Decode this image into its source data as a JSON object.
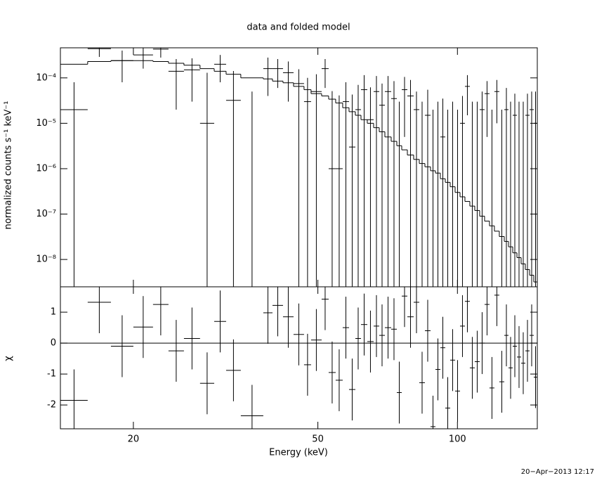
{
  "chart_data": {
    "type": "spectrum-residual",
    "title": "data and folded model",
    "xlabel": "Energy (keV)",
    "log_x": true,
    "xlim": [
      13.92,
      148.68
    ],
    "xticks": [
      20,
      50,
      100
    ],
    "bins": [
      13.92,
      15.94,
      17.89,
      20.0,
      22.05,
      23.81,
      25.71,
      27.85,
      29.88,
      31.7,
      34.1,
      38.13,
      39.91,
      42.05,
      44.31,
      46.68,
      48.34,
      50.94,
      52.75,
      54.62,
      56.56,
      58.37,
      60.23,
      61.94,
      63.91,
      65.95,
      67.82,
      69.74,
      71.96,
      74.0,
      75.83,
      77.98,
      80.46,
      82.74,
      85.08,
      87.49,
      89.65,
      91.87,
      94.14,
      96.46,
      98.85,
      101.29,
      103.79,
      106.35,
      108.98,
      111.67,
      114.43,
      117.25,
      120.15,
      123.12,
      126.19,
      128.86,
      131.59,
      134.37,
      137.21,
      140.11,
      143.08,
      146.1,
      148.68
    ],
    "top": {
      "ylabel": "normalized counts s⁻¹ keV⁻¹",
      "log_y": true,
      "ylim": [
        2.5e-09,
        0.00046
      ],
      "yticks": [
        {
          "value": 1e-08,
          "label": "10⁻⁸"
        },
        {
          "value": 1e-07,
          "label": "10⁻⁷"
        },
        {
          "value": 1e-06,
          "label": "10⁻⁶"
        },
        {
          "value": 1e-05,
          "label": "10⁻⁵"
        },
        {
          "value": 0.0001,
          "label": "10⁻⁴"
        }
      ],
      "data": {
        "color": "#000000",
        "values": [
          2e-05,
          0.00044,
          0.00024,
          0.00032,
          0.00043,
          0.00014,
          0.00015,
          1e-05,
          0.0002,
          3.2e-05,
          1e-09,
          0.00016,
          0.00016,
          0.00013,
          7.5e-05,
          3e-05,
          5e-05,
          0.00016,
          1e-06,
          1e-06,
          3e-05,
          3e-06,
          2e-05,
          5.5e-05,
          1.2e-05,
          5e-05,
          2.5e-05,
          5e-05,
          3.5e-05,
          1e-09,
          5.5e-05,
          4e-05,
          2e-05,
          1e-09,
          1.5e-05,
          1e-09,
          1e-09,
          5e-06,
          1e-09,
          1e-09,
          1e-09,
          1e-05,
          6.5e-05,
          1e-09,
          1e-09,
          2e-05,
          4.5e-05,
          1e-09,
          5e-05,
          1e-09,
          2e-05,
          1e-09,
          1.5e-05,
          1e-09,
          1e-09,
          1.5e-05,
          2e-05,
          1e-05
        ],
        "errors": [
          6e-05,
          0.00015,
          0.00016,
          0.00016,
          0.00015,
          0.00012,
          0.00012,
          0.00012,
          0.00012,
          0.00011,
          5e-05,
          0.00012,
          0.0001,
          0.0001,
          8e-05,
          7e-05,
          7e-05,
          0.0001,
          5e-05,
          4e-05,
          5e-05,
          4e-05,
          5e-05,
          6e-05,
          5e-05,
          6e-05,
          5e-05,
          6e-05,
          5e-05,
          3e-05,
          5e-05,
          5e-05,
          3e-05,
          3e-05,
          4e-05,
          2e-05,
          3e-05,
          3e-05,
          2e-05,
          3e-05,
          2e-05,
          3e-05,
          5e-05,
          3e-05,
          3e-05,
          3e-05,
          4e-05,
          2e-05,
          4e-05,
          2e-05,
          4e-05,
          3e-05,
          3e-05,
          3e-05,
          3e-05,
          3e-05,
          3e-05,
          4e-05
        ]
      },
      "model": {
        "color": "#000000",
        "values": [
          0.0002,
          0.00023,
          0.00024,
          0.00024,
          0.00023,
          0.00021,
          0.00019,
          0.00016,
          0.00014,
          0.00012,
          0.0001,
          9.5e-05,
          8.5e-05,
          7.8e-05,
          6.5e-05,
          5.5e-05,
          4.5e-05,
          4e-05,
          3.4e-05,
          2.8e-05,
          2.2e-05,
          1.8e-05,
          1.5e-05,
          1.2e-05,
          1e-05,
          8e-06,
          6.5e-06,
          5e-06,
          4e-06,
          3.2e-06,
          2.6e-06,
          2e-06,
          1.6e-06,
          1.3e-06,
          1.1e-06,
          9e-07,
          8e-07,
          6e-07,
          5e-07,
          4e-07,
          3e-07,
          2.4e-07,
          1.9e-07,
          1.5e-07,
          1.2e-07,
          9e-08,
          7e-08,
          5.5e-08,
          4.2e-08,
          3.2e-08,
          2.5e-08,
          1.9e-08,
          1.4e-08,
          1.1e-08,
          8e-09,
          6e-09,
          4.5e-09,
          3.2e-09
        ]
      }
    },
    "bottom": {
      "ylabel": "χ",
      "ylim": [
        -2.77,
        1.82
      ],
      "yticks": [
        -2,
        -1,
        0,
        1
      ],
      "reference": 0,
      "reference_color": "#00dd00",
      "data": {
        "color": "#000000",
        "values": [
          -1.85,
          1.32,
          -0.1,
          0.52,
          1.25,
          -0.25,
          0.15,
          -1.3,
          0.7,
          -0.88,
          -2.35,
          0.98,
          1.22,
          0.85,
          0.28,
          -0.7,
          0.1,
          1.42,
          -0.95,
          -1.2,
          0.5,
          -1.5,
          0.15,
          0.6,
          0.05,
          0.55,
          0.25,
          0.5,
          0.45,
          -1.6,
          1.52,
          0.85,
          1.32,
          -1.28,
          0.4,
          -2.7,
          -0.85,
          -0.15,
          -2.1,
          -0.55,
          -1.55,
          0.55,
          1.35,
          -0.8,
          -0.6,
          0,
          1.25,
          -1.45,
          1.55,
          -1.25,
          0.25,
          -0.8,
          -0.1,
          -0.45,
          -0.65,
          -0.25,
          0.25,
          -1.1
        ],
        "errors": [
          1,
          1,
          1,
          1,
          1,
          1,
          1,
          1,
          1,
          1,
          1,
          1,
          1,
          1,
          1,
          1,
          1,
          1,
          1,
          1,
          1,
          1,
          1,
          1,
          1,
          1,
          1,
          1,
          1,
          1,
          1,
          1,
          1,
          1,
          1,
          1,
          1,
          1,
          1,
          1,
          1,
          1,
          1,
          1,
          1,
          1,
          1,
          1,
          1,
          1,
          1,
          1,
          1,
          1,
          1,
          1,
          1,
          1
        ]
      }
    }
  },
  "timestamp": "20−Apr−2013 12:17"
}
